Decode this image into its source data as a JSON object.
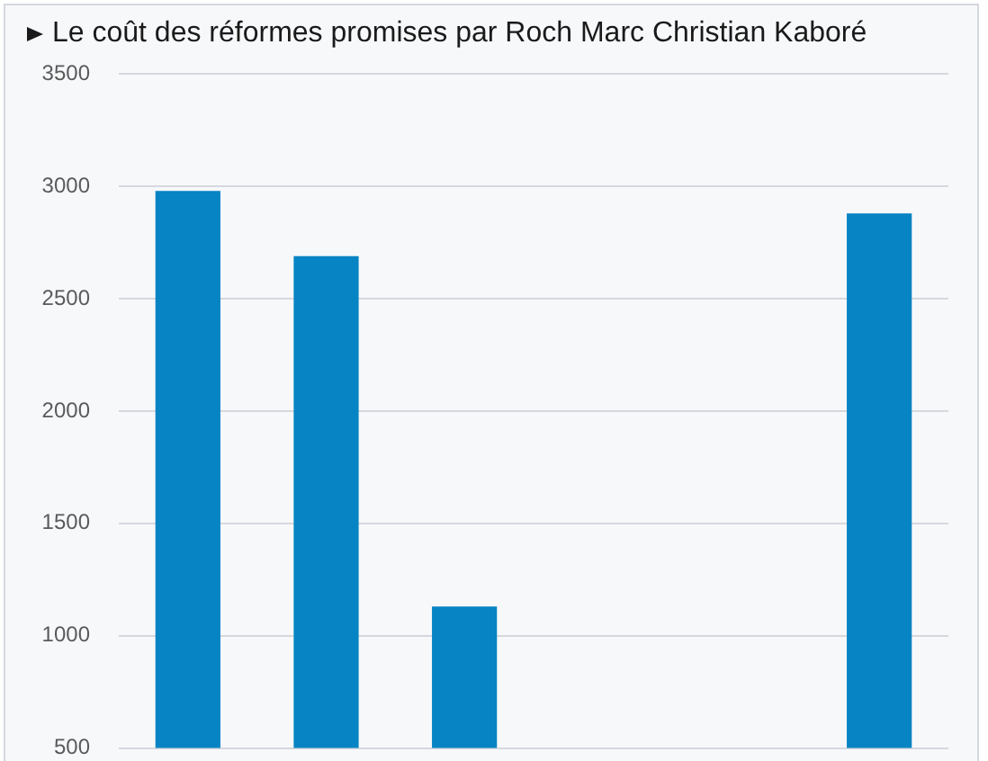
{
  "chart_data": {
    "type": "bar",
    "title": "Le coût des réformes promises par Roch Marc Christian Kaboré",
    "categories": [
      null,
      null,
      null,
      null,
      null,
      null
    ],
    "values": [
      2980,
      2690,
      1130,
      null,
      null,
      2880
    ],
    "color": "#0784c3",
    "ylim": [
      500,
      3500
    ],
    "yticks": [
      500,
      1000,
      1500,
      2000,
      2500,
      3000,
      3500
    ],
    "grid": "y",
    "tick_labels": "y"
  }
}
